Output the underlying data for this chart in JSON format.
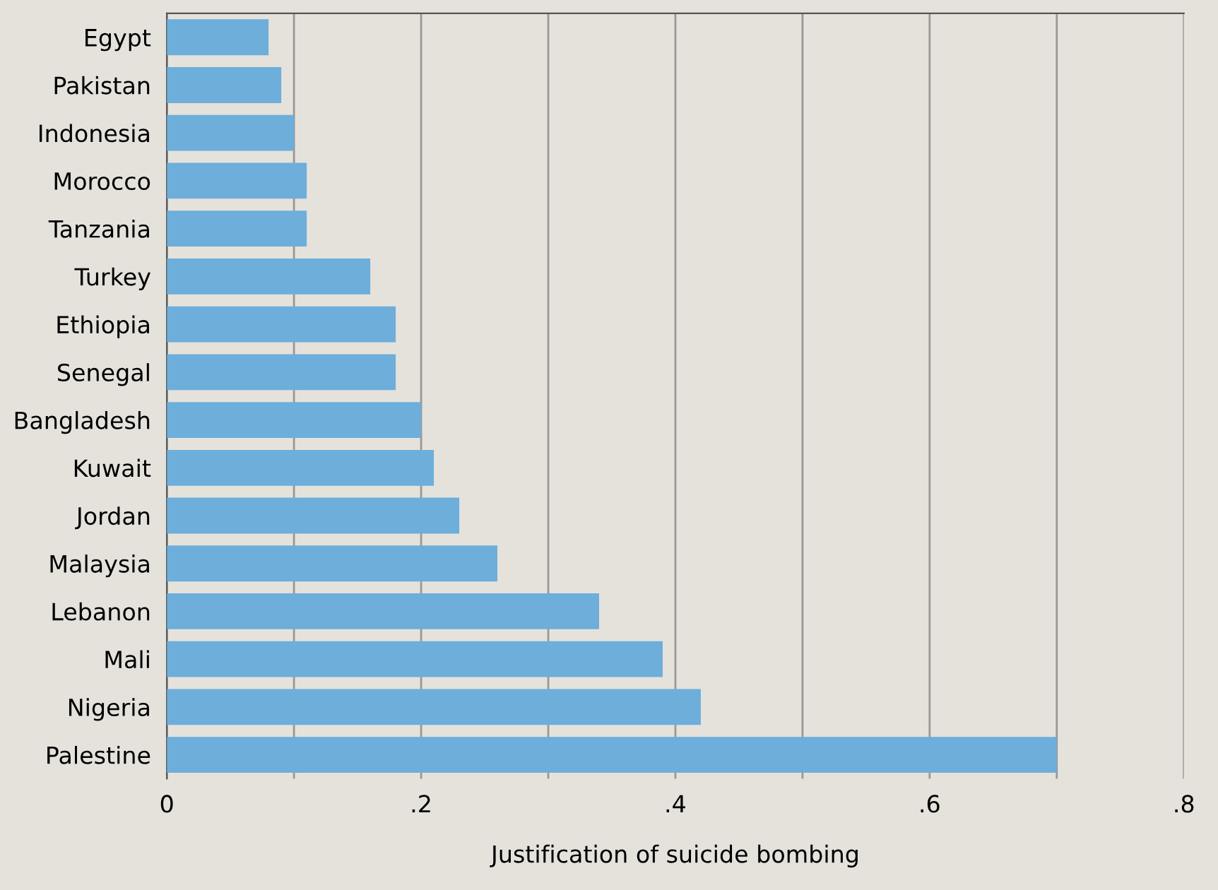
{
  "chart_data": {
    "type": "bar",
    "orientation": "horizontal",
    "xlabel": "Justification of suicide bombing",
    "categories": [
      "Egypt",
      "Pakistan",
      "Indonesia",
      "Morocco",
      "Tanzania",
      "Turkey",
      "Ethiopia",
      "Senegal",
      "Bangladesh",
      "Kuwait",
      "Jordan",
      "Malaysia",
      "Lebanon",
      "Mali",
      "Nigeria",
      "Palestine"
    ],
    "values": [
      0.08,
      0.09,
      0.1,
      0.11,
      0.11,
      0.16,
      0.18,
      0.18,
      0.2,
      0.21,
      0.23,
      0.26,
      0.34,
      0.39,
      0.42,
      0.7
    ],
    "color": "#6daedb",
    "xlim": [
      0,
      0.8
    ],
    "xticks": [
      0,
      {
        "value": 0.1,
        "label": null
      },
      {
        "value": 0.2,
        "label": ".2"
      },
      {
        "value": 0.3,
        "label": null
      },
      {
        "value": 0.4,
        "label": ".4"
      },
      {
        "value": 0.5,
        "label": null
      },
      {
        "value": 0.6,
        "label": ".6"
      },
      {
        "value": 0.7,
        "label": null
      },
      {
        "value": 0.8,
        "label": ".8"
      }
    ],
    "grid": "x",
    "legend": false
  }
}
